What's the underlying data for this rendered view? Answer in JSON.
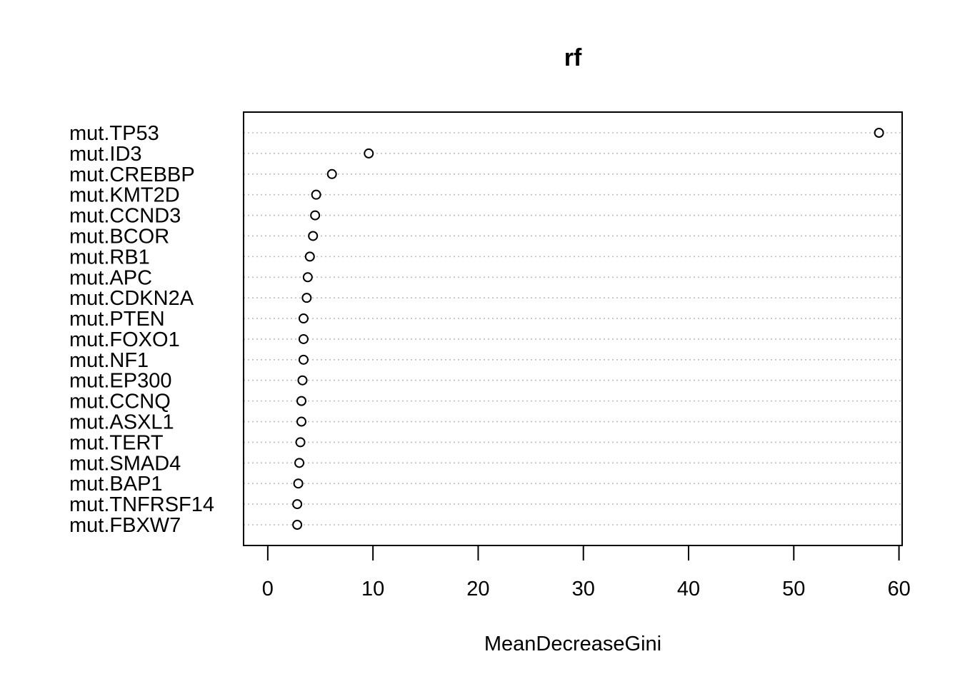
{
  "chart_data": {
    "type": "scatter",
    "subtype": "dotchart",
    "title": "rf",
    "xlabel": "MeanDecreaseGini",
    "ylabel": "",
    "xlim": [
      -2.3,
      60.3
    ],
    "xticks": [
      0,
      10,
      20,
      30,
      40,
      50,
      60
    ],
    "grid": "dotted horizontal lines",
    "legend": "none",
    "categories": [
      "mut.TP53",
      "mut.ID3",
      "mut.CREBBP",
      "mut.KMT2D",
      "mut.CCND3",
      "mut.BCOR",
      "mut.RB1",
      "mut.APC",
      "mut.CDKN2A",
      "mut.PTEN",
      "mut.FOXO1",
      "mut.NF1",
      "mut.EP300",
      "mut.CCNQ",
      "mut.ASXL1",
      "mut.TERT",
      "mut.SMAD4",
      "mut.BAP1",
      "mut.TNFRSF14",
      "mut.FBXW7"
    ],
    "values": [
      58.1,
      9.6,
      6.1,
      4.6,
      4.5,
      4.3,
      4.0,
      3.8,
      3.7,
      3.4,
      3.4,
      3.4,
      3.3,
      3.2,
      3.2,
      3.1,
      3.0,
      2.9,
      2.8,
      2.8
    ]
  }
}
